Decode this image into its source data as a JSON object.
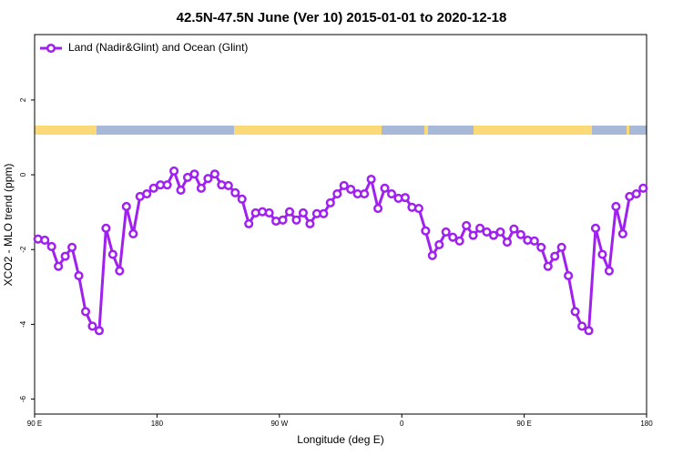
{
  "chart_data": {
    "type": "line",
    "title": "42.5N-47.5N June (Ver 10)   2015-01-01 to 2020-12-18",
    "x_label": "Longitude (deg E)",
    "y_label": "XCO2 - MLO trend (ppm)",
    "xlim": [
      90,
      540
    ],
    "ylim": [
      -6.4,
      3.75
    ],
    "xticks": [
      {
        "value": 90,
        "label": "90 E"
      },
      {
        "value": 180,
        "label": "180"
      },
      {
        "value": 270,
        "label": "90 W"
      },
      {
        "value": 360,
        "label": "0"
      },
      {
        "value": 450,
        "label": "90 E"
      },
      {
        "value": 540,
        "label": "180"
      }
    ],
    "yticks": [
      2,
      0,
      -2,
      -4,
      -6
    ],
    "legend_position": "top-left",
    "x": [
      92.5,
      97.5,
      102.5,
      107.5,
      112.5,
      117.5,
      122.5,
      127.5,
      132.5,
      137.5,
      142.5,
      147.5,
      152.5,
      157.5,
      162.5,
      167.5,
      172.5,
      177.5,
      182.5,
      187.5,
      192.5,
      197.5,
      202.5,
      207.5,
      212.5,
      217.5,
      222.5,
      227.5,
      232.5,
      237.5,
      242.5,
      247.5,
      252.5,
      257.5,
      262.5,
      267.5,
      272.5,
      277.5,
      282.5,
      287.5,
      292.5,
      297.5,
      302.5,
      307.5,
      312.5,
      317.5,
      322.5,
      327.5,
      332.5,
      337.5,
      342.5,
      347.5,
      352.5,
      357.5,
      362.5,
      367.5,
      372.5,
      377.5,
      382.5,
      387.5,
      392.5,
      397.5,
      402.5,
      407.5,
      412.5,
      417.5,
      422.5,
      427.5,
      432.5,
      437.5,
      442.5,
      447.5,
      452.5,
      457.5,
      462.5,
      467.5,
      472.5,
      477.5,
      482.5,
      487.5,
      492.5,
      497.5,
      502.5,
      507.5,
      512.5,
      517.5,
      522.5,
      527.5,
      532.5,
      537.5
    ],
    "series": [
      {
        "name": "Land (Nadir&Glint) and Ocean (Glint)",
        "color": "#a020f0",
        "values": [
          -1.72,
          -1.75,
          -1.92,
          -2.45,
          -2.18,
          -1.94,
          -2.7,
          -3.66,
          -4.05,
          -4.17,
          -1.43,
          -2.13,
          -2.57,
          -0.85,
          -1.58,
          -0.58,
          -0.51,
          -0.36,
          -0.27,
          -0.27,
          0.1,
          -0.41,
          -0.07,
          0.02,
          -0.36,
          -0.1,
          0.02,
          -0.27,
          -0.29,
          -0.48,
          -0.65,
          -1.31,
          -1.02,
          -0.99,
          -1.02,
          -1.24,
          -1.21,
          -0.99,
          -1.21,
          -1.02,
          -1.31,
          -1.04,
          -1.04,
          -0.75,
          -0.51,
          -0.29,
          -0.39,
          -0.51,
          -0.51,
          -0.12,
          -0.9,
          -0.36,
          -0.51,
          -0.63,
          -0.61,
          -0.87,
          -0.9,
          -1.5,
          -2.16,
          -1.87,
          -1.53,
          -1.67,
          -1.77,
          -1.36,
          -1.62,
          -1.43,
          -1.53,
          -1.62,
          -1.53,
          -1.8,
          -1.45,
          -1.6,
          -1.75,
          -1.77,
          -1.94,
          -2.45,
          -2.18,
          -1.94,
          -2.7,
          -3.66,
          -4.05,
          -4.17,
          -1.43,
          -2.13,
          -2.57,
          -0.85,
          -1.58,
          -0.58,
          -0.51,
          -0.36
        ]
      }
    ]
  }
}
